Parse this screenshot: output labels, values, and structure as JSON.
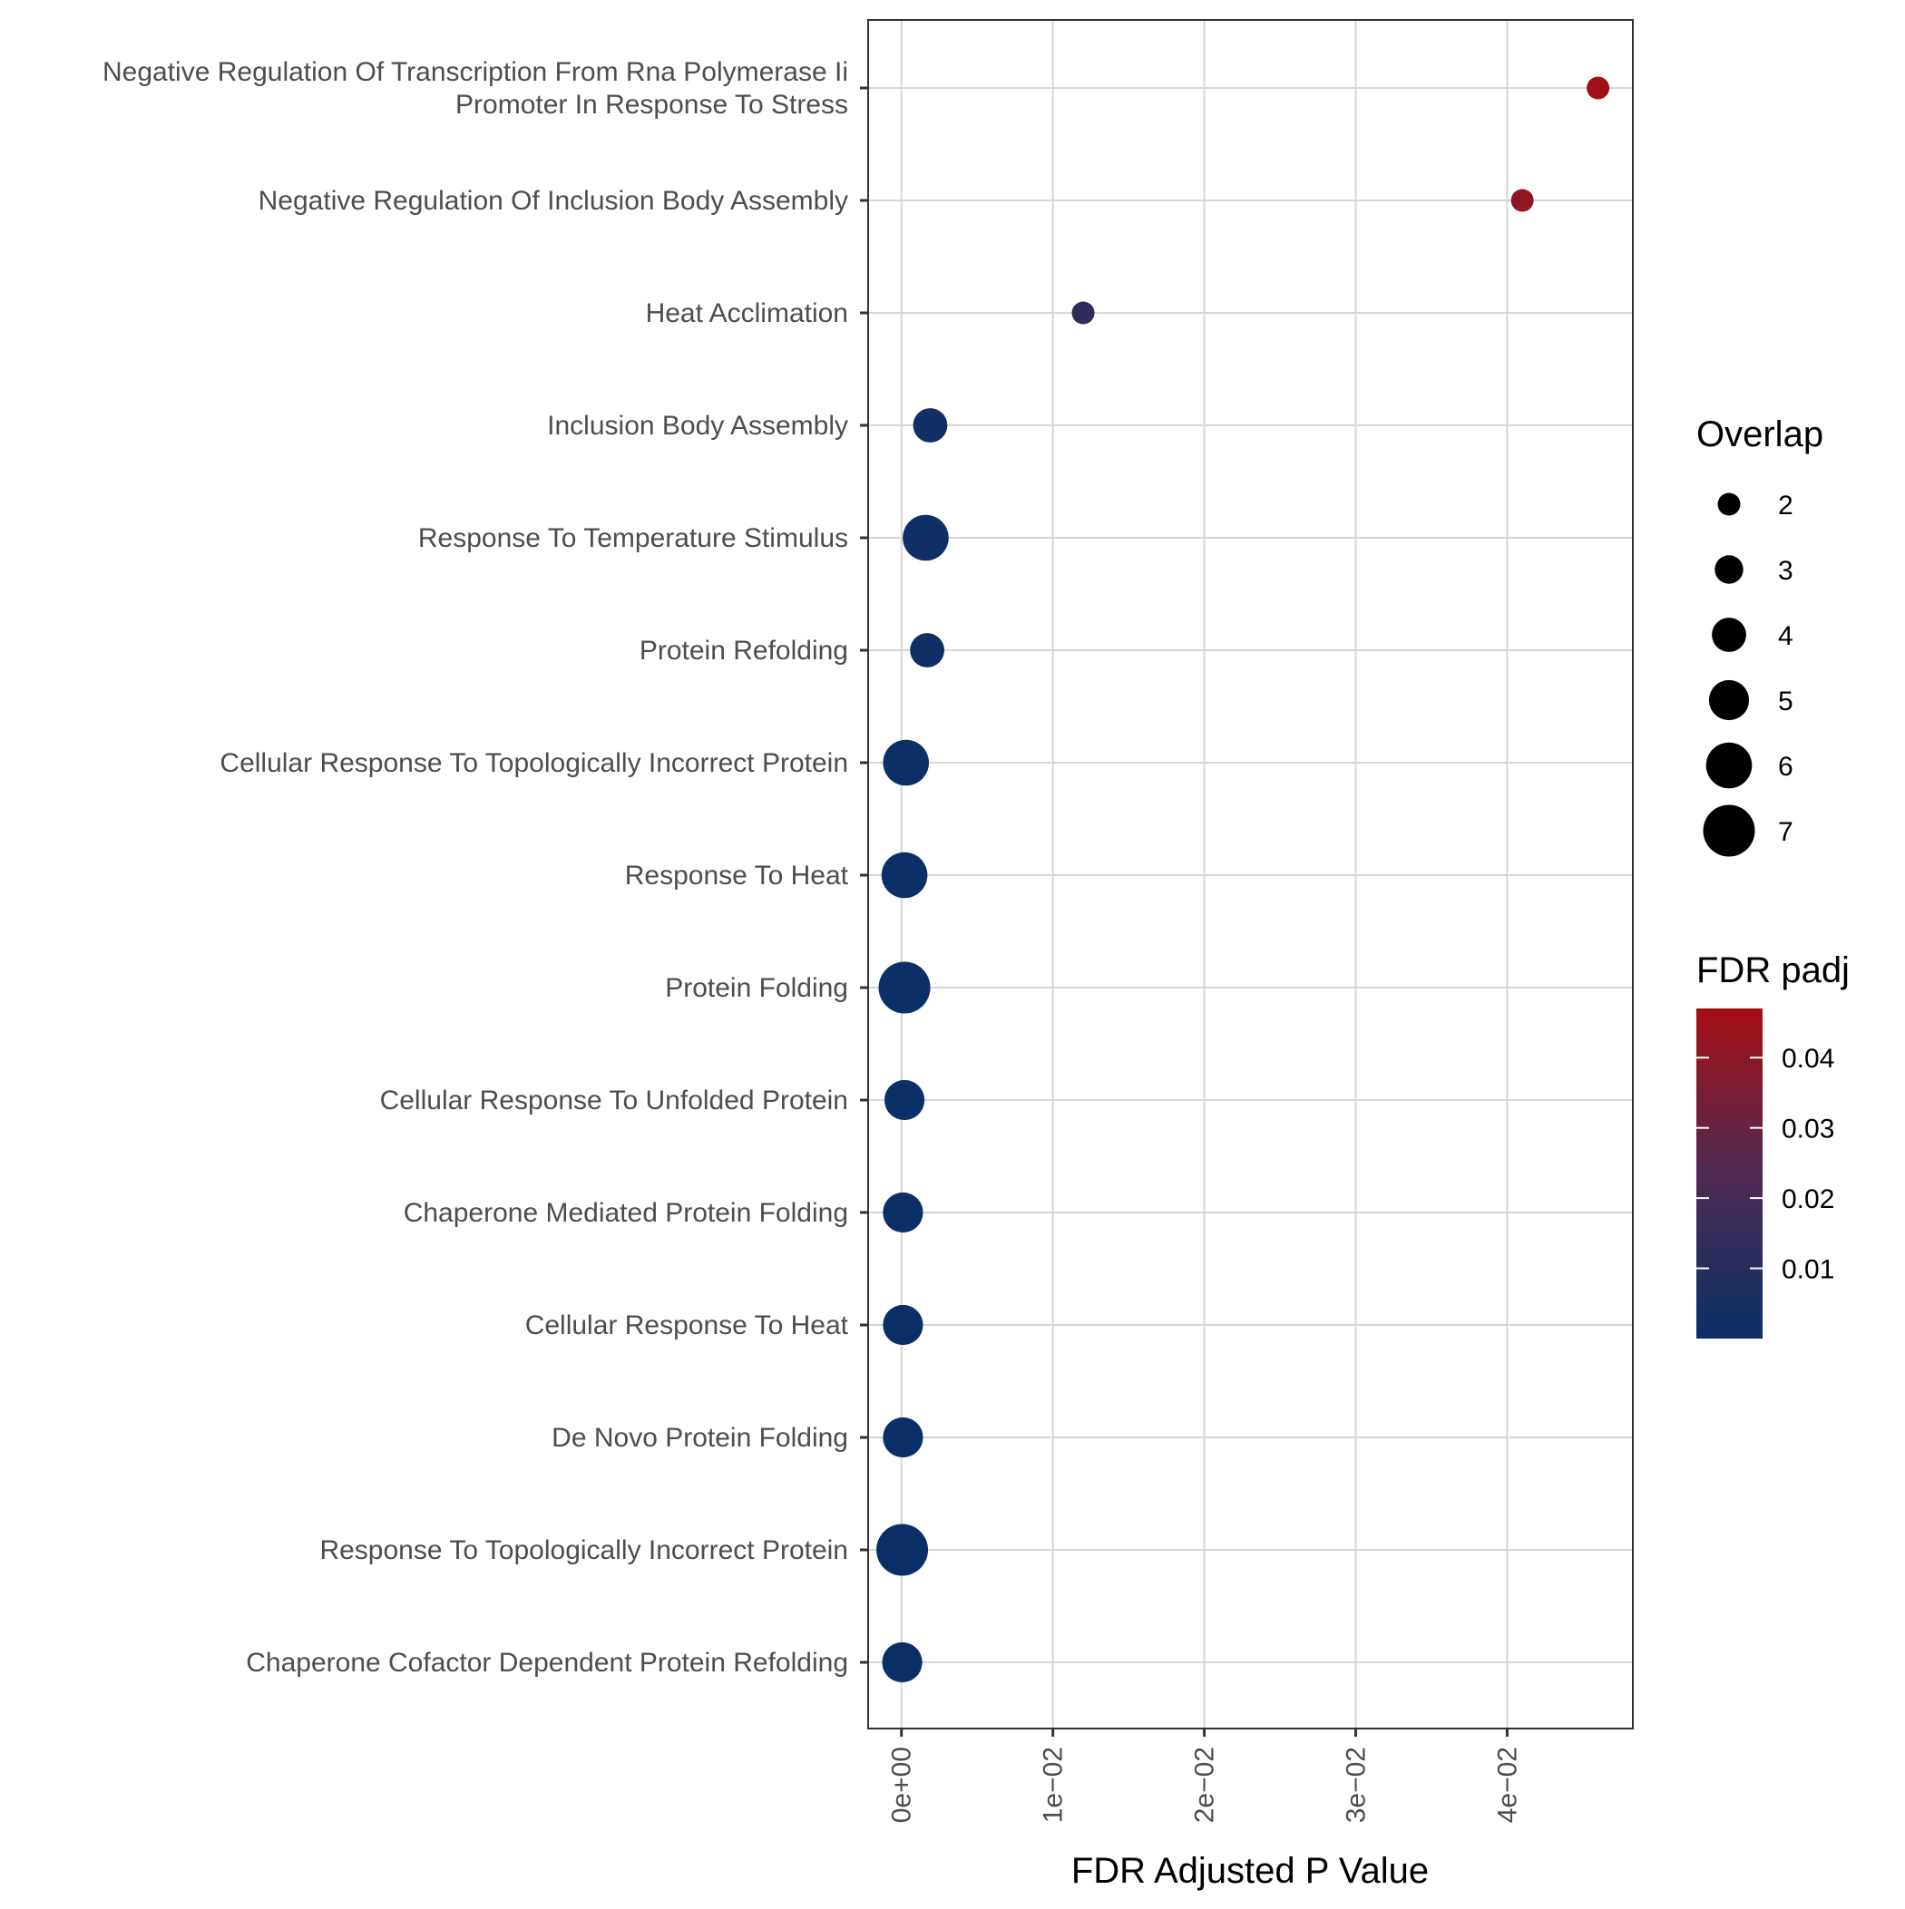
{
  "chart_data": {
    "type": "scatter",
    "xlabel": "FDR Adjusted P Value",
    "ylabel": "",
    "xlim": [
      -0.0022,
      0.0483
    ],
    "x_ticks": [
      {
        "value": 0.0,
        "label": "0e+00"
      },
      {
        "value": 0.01,
        "label": "1e−02"
      },
      {
        "value": 0.02,
        "label": "2e−02"
      },
      {
        "value": 0.03,
        "label": "3e−02"
      },
      {
        "value": 0.04,
        "label": "4e−02"
      }
    ],
    "grid": true,
    "categories": [
      [
        "Negative Regulation Of Transcription From Rna Polymerase Ii",
        "Promoter In Response To Stress"
      ],
      [
        "Negative Regulation Of Inclusion Body Assembly"
      ],
      [
        "Heat Acclimation"
      ],
      [
        "Inclusion Body Assembly"
      ],
      [
        "Response To Temperature Stimulus"
      ],
      [
        "Protein Refolding"
      ],
      [
        "Cellular Response To Topologically Incorrect Protein"
      ],
      [
        "Response To Heat"
      ],
      [
        "Protein Folding"
      ],
      [
        "Cellular Response To Unfolded Protein"
      ],
      [
        "Chaperone Mediated Protein Folding"
      ],
      [
        "Cellular Response To Heat"
      ],
      [
        "De Novo Protein Folding"
      ],
      [
        "Response To Topologically Incorrect Protein"
      ],
      [
        "Chaperone Cofactor Dependent Protein Refolding"
      ]
    ],
    "points": [
      {
        "x": 0.046,
        "overlap": 2
      },
      {
        "x": 0.041,
        "overlap": 2
      },
      {
        "x": 0.012,
        "overlap": 2
      },
      {
        "x": 0.0019,
        "overlap": 4
      },
      {
        "x": 0.0016,
        "overlap": 6
      },
      {
        "x": 0.0017,
        "overlap": 4
      },
      {
        "x": 0.0003,
        "overlap": 6
      },
      {
        "x": 0.0002,
        "overlap": 6
      },
      {
        "x": 0.0002,
        "overlap": 7
      },
      {
        "x": 0.0002,
        "overlap": 5
      },
      {
        "x": 0.0001,
        "overlap": 5
      },
      {
        "x": 0.0001,
        "overlap": 5
      },
      {
        "x": 0.0001,
        "overlap": 5
      },
      {
        "x": 5e-05,
        "overlap": 7
      },
      {
        "x": 5e-05,
        "overlap": 5
      }
    ],
    "legend_size": {
      "title": "Overlap",
      "placement": "right",
      "values": [
        2,
        3,
        4,
        5,
        6,
        7
      ],
      "labels": [
        "2",
        "3",
        "4",
        "5",
        "6",
        "7"
      ]
    },
    "legend_color": {
      "title": "FDR padj",
      "placement": "right",
      "range": [
        0,
        0.047
      ],
      "ticks": [
        0.01,
        0.02,
        0.03,
        0.04
      ],
      "labels": [
        "0.01",
        "0.02",
        "0.03",
        "0.04"
      ],
      "low_color": "#0a2f67",
      "high_color": "#a50f15"
    }
  }
}
